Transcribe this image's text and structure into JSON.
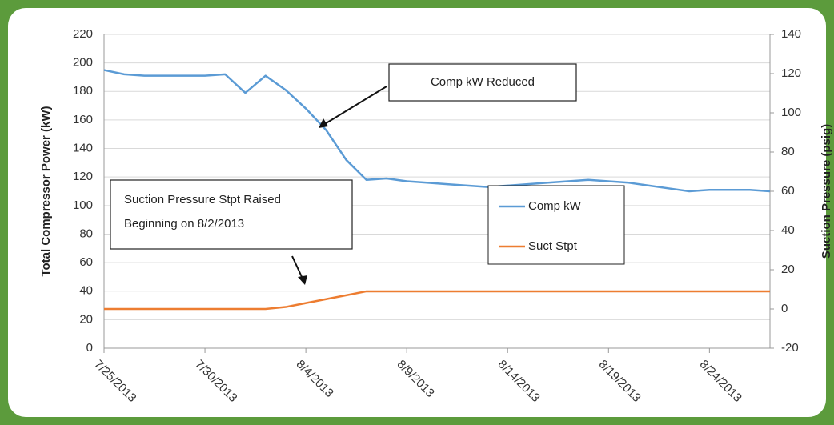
{
  "chart_data": {
    "type": "line",
    "y_label": "Total Compressor Power (kW)",
    "y2_label": "Suction Pressure (psig)",
    "x": [
      "7/25/2013",
      "7/26/2013",
      "7/27/2013",
      "7/28/2013",
      "7/29/2013",
      "7/30/2013",
      "7/31/2013",
      "8/1/2013",
      "8/2/2013",
      "8/3/2013",
      "8/4/2013",
      "8/5/2013",
      "8/6/2013",
      "8/7/2013",
      "8/8/2013",
      "8/9/2013",
      "8/10/2013",
      "8/11/2013",
      "8/12/2013",
      "8/13/2013",
      "8/14/2013",
      "8/15/2013",
      "8/16/2013",
      "8/17/2013",
      "8/18/2013",
      "8/19/2013",
      "8/20/2013",
      "8/21/2013",
      "8/22/2013",
      "8/23/2013",
      "8/24/2013",
      "8/25/2013",
      "8/26/2013",
      "8/27/2013"
    ],
    "xlim": [
      "7/25/2013",
      "8/27/2013"
    ],
    "xticks": [
      "7/25/2013",
      "7/30/2013",
      "8/4/2013",
      "8/9/2013",
      "8/14/2013",
      "8/19/2013",
      "8/24/2013"
    ],
    "ylim": [
      0,
      220
    ],
    "yticks": [
      0,
      20,
      40,
      60,
      80,
      100,
      120,
      140,
      160,
      180,
      200,
      220
    ],
    "y2lim": [
      -20,
      140
    ],
    "y2ticks": [
      -20,
      0,
      20,
      40,
      60,
      80,
      100,
      120,
      140
    ],
    "grid": true,
    "legend": "center",
    "series": [
      {
        "name": "Comp kW",
        "color": "#5b9bd5",
        "values": [
          195,
          192,
          191,
          191,
          191,
          191,
          192,
          179,
          191,
          181,
          168,
          153,
          132,
          118,
          119,
          117,
          116,
          115,
          114,
          113,
          114,
          115,
          116,
          117,
          118,
          117,
          116,
          114,
          112,
          110,
          111,
          111,
          111,
          110
        ]
      },
      {
        "name": "Suct Stpt",
        "color": "#ed7d31",
        "axis": "y2",
        "values": [
          0,
          0,
          0,
          0,
          0,
          0,
          0,
          0,
          0,
          1,
          3,
          5,
          7,
          9,
          9,
          9,
          9,
          9,
          9,
          9,
          9,
          9,
          9,
          9,
          9,
          9,
          9,
          9,
          9,
          9,
          9,
          9,
          9,
          9
        ]
      }
    ],
    "annotations": [
      {
        "lines": [
          "Comp kW Reduced"
        ]
      },
      {
        "lines": [
          "Suction Pressure Stpt Raised",
          "Beginning on 8/2/2013"
        ]
      }
    ]
  }
}
